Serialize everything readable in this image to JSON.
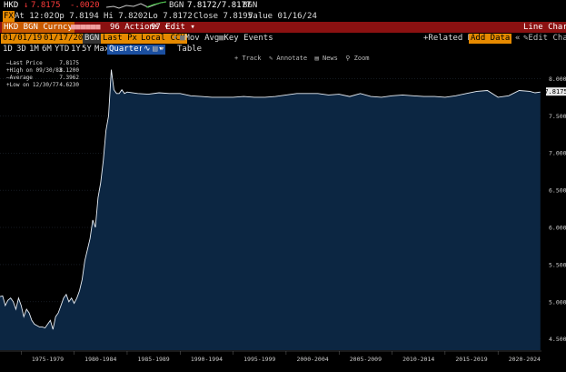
{
  "quote": {
    "ticker": "HKD",
    "last": "7.8175",
    "change": "-.0020",
    "source": "BGN",
    "bid_ask": "7.8172/7.8177",
    "source2": "BGN"
  },
  "stats": {
    "badge": "FX",
    "at": "At 12:02",
    "open": "Op 7.8194",
    "high": "Hi 7.8202",
    "low": "Lo 7.8172",
    "close": "Close 7.8195",
    "value": "Value 01/16/24"
  },
  "title_bar": {
    "security": "HKD BGN Curncy",
    "actions": "Actions",
    "edit": "Edit",
    "chart_type": "Line Chart"
  },
  "controls": {
    "start_date": "01/01/1973",
    "end_date": "01/17/2024",
    "source": "BGN",
    "field": "Last Px",
    "currency": "Local CCY",
    "mov_avgs": "Mov Avgs",
    "key_events": "Key Events",
    "related_data": "Related Data",
    "add_data": "Add Data",
    "edit_chart": "Edit Chart"
  },
  "periods": {
    "items": [
      "1D",
      "3D",
      "1M",
      "6M",
      "YTD",
      "1Y",
      "5Y",
      "Max"
    ],
    "frequency": "Quarterly",
    "table": "Table"
  },
  "toolbar": {
    "track": "Track",
    "annotate": "Annotate",
    "news": "News",
    "zoom": "Zoom"
  },
  "legend": {
    "last_price_label": "Last Price",
    "last_price_value": "7.8175",
    "high_label": "High on 09/30/83",
    "high_value": "8.1200",
    "average_label": "Average",
    "average_value": "7.3962",
    "low_label": "Low on 12/30/77",
    "low_value": "4.6230"
  },
  "colors": {
    "line": "#e8eef5",
    "fill": "#0c2642",
    "accent": "#e68a00",
    "red_bar": "#8b1111"
  },
  "chart_data": {
    "type": "area",
    "ylim": [
      4.35,
      8.25
    ],
    "yticks": [
      "8.0000",
      "7.5000",
      "7.0000",
      "6.5000",
      "6.0000",
      "5.5000",
      "5.0000",
      "4.5000"
    ],
    "ytick_values": [
      8.0,
      7.5,
      7.0,
      6.5,
      6.0,
      5.5,
      5.0,
      4.5
    ],
    "last_value_label": "7.8175",
    "xlim": [
      1973.0,
      2024.1
    ],
    "xticks": [
      "1975-1979",
      "1980-1984",
      "1985-1989",
      "1990-1994",
      "1995-1999",
      "2000-2004",
      "2005-2009",
      "2010-2014",
      "2015-2019",
      "2020-2024"
    ],
    "xtick_positions": [
      1977.5,
      1982.5,
      1987.5,
      1992.5,
      1997.5,
      2002.5,
      2007.5,
      2012.5,
      2017.5,
      2022.5
    ],
    "x": [
      1973.0,
      1973.25,
      1973.5,
      1973.75,
      1974.0,
      1974.25,
      1974.5,
      1974.75,
      1975.0,
      1975.25,
      1975.5,
      1975.75,
      1976.0,
      1976.25,
      1976.5,
      1976.75,
      1977.0,
      1977.25,
      1977.5,
      1977.75,
      1978.0,
      1978.25,
      1978.5,
      1978.75,
      1979.0,
      1979.25,
      1979.5,
      1979.75,
      1980.0,
      1980.25,
      1980.5,
      1980.75,
      1981.0,
      1981.25,
      1981.5,
      1981.75,
      1982.0,
      1982.25,
      1982.5,
      1982.75,
      1983.0,
      1983.25,
      1983.5,
      1983.75,
      1984.0,
      1984.25,
      1984.5,
      1984.75,
      1985.0,
      1986.0,
      1987.0,
      1988.0,
      1989.0,
      1990.0,
      1991.0,
      1992.0,
      1993.0,
      1994.0,
      1995.0,
      1996.0,
      1997.0,
      1998.0,
      1999.0,
      2000.0,
      2001.0,
      2002.0,
      2003.0,
      2004.0,
      2005.0,
      2006.0,
      2007.0,
      2008.0,
      2009.0,
      2010.0,
      2011.0,
      2012.0,
      2013.0,
      2014.0,
      2015.0,
      2016.0,
      2017.0,
      2018.0,
      2019.0,
      2020.0,
      2021.0,
      2022.0,
      2023.0,
      2023.5,
      2024.0
    ],
    "values": [
      5.07,
      5.08,
      4.95,
      5.02,
      5.05,
      5.0,
      4.9,
      5.05,
      4.95,
      4.8,
      4.9,
      4.85,
      4.75,
      4.7,
      4.68,
      4.66,
      4.66,
      4.65,
      4.7,
      4.75,
      4.63,
      4.8,
      4.85,
      4.95,
      5.05,
      5.1,
      5.0,
      5.05,
      4.98,
      5.05,
      5.15,
      5.3,
      5.55,
      5.7,
      5.85,
      6.1,
      6.0,
      6.4,
      6.6,
      6.9,
      7.3,
      7.5,
      8.12,
      7.85,
      7.8,
      7.8,
      7.85,
      7.8,
      7.82,
      7.8,
      7.79,
      7.81,
      7.8,
      7.8,
      7.77,
      7.76,
      7.75,
      7.75,
      7.75,
      7.76,
      7.75,
      7.75,
      7.76,
      7.78,
      7.8,
      7.8,
      7.8,
      7.78,
      7.79,
      7.76,
      7.8,
      7.76,
      7.75,
      7.77,
      7.78,
      7.77,
      7.76,
      7.76,
      7.75,
      7.77,
      7.8,
      7.83,
      7.84,
      7.75,
      7.77,
      7.84,
      7.83,
      7.81,
      7.82
    ]
  }
}
